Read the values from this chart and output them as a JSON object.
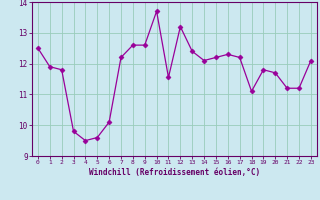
{
  "x": [
    0,
    1,
    2,
    3,
    4,
    5,
    6,
    7,
    8,
    9,
    10,
    11,
    12,
    13,
    14,
    15,
    16,
    17,
    18,
    19,
    20,
    21,
    22,
    23
  ],
  "y": [
    12.5,
    11.9,
    11.8,
    9.8,
    9.5,
    9.6,
    10.1,
    12.2,
    12.6,
    12.6,
    13.7,
    11.55,
    13.2,
    12.4,
    12.1,
    12.2,
    12.3,
    12.2,
    11.1,
    11.8,
    11.7,
    11.2,
    11.2,
    12.1
  ],
  "line_color": "#990099",
  "marker": "D",
  "marker_size": 2.5,
  "bg_color": "#cce8f0",
  "grid_color": "#99ccbb",
  "xlabel": "Windchill (Refroidissement éolien,°C)",
  "label_color": "#660066",
  "tick_color": "#660066",
  "ylim": [
    9,
    14
  ],
  "xlim": [
    -0.5,
    23.5
  ],
  "yticks": [
    9,
    10,
    11,
    12,
    13,
    14
  ],
  "xticks": [
    0,
    1,
    2,
    3,
    4,
    5,
    6,
    7,
    8,
    9,
    10,
    11,
    12,
    13,
    14,
    15,
    16,
    17,
    18,
    19,
    20,
    21,
    22,
    23
  ],
  "xlabel_bar_color": "#660066",
  "xlabel_bg_color": "#cce8f0"
}
